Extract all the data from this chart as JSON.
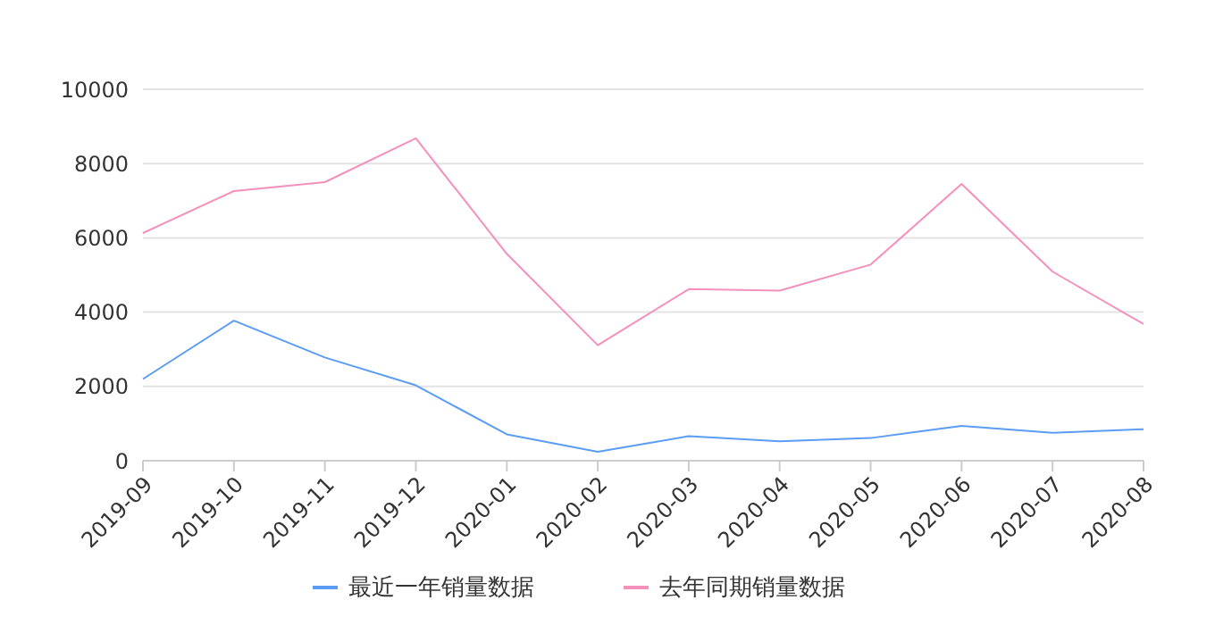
{
  "chart_data": {
    "type": "line",
    "categories": [
      "2019-09",
      "2019-10",
      "2019-11",
      "2019-12",
      "2020-01",
      "2020-02",
      "2020-03",
      "2020-04",
      "2020-05",
      "2020-06",
      "2020-07",
      "2020-08"
    ],
    "series": [
      {
        "name": "最近一年销量数据",
        "color": "#5b9cf5",
        "values": [
          2200,
          3770,
          2780,
          2030,
          710,
          240,
          660,
          520,
          610,
          940,
          750,
          850
        ]
      },
      {
        "name": "去年同期销量数据",
        "color": "#f58fbc",
        "values": [
          6130,
          7260,
          7500,
          8680,
          5570,
          3110,
          4620,
          4580,
          5280,
          7450,
          5090,
          3680
        ]
      }
    ],
    "ylim": [
      0,
      10000
    ],
    "yticks": [
      0,
      2000,
      4000,
      6000,
      8000,
      10000
    ],
    "grid": "y",
    "legend": "bottom",
    "marker": "none",
    "line_style": "solid"
  }
}
